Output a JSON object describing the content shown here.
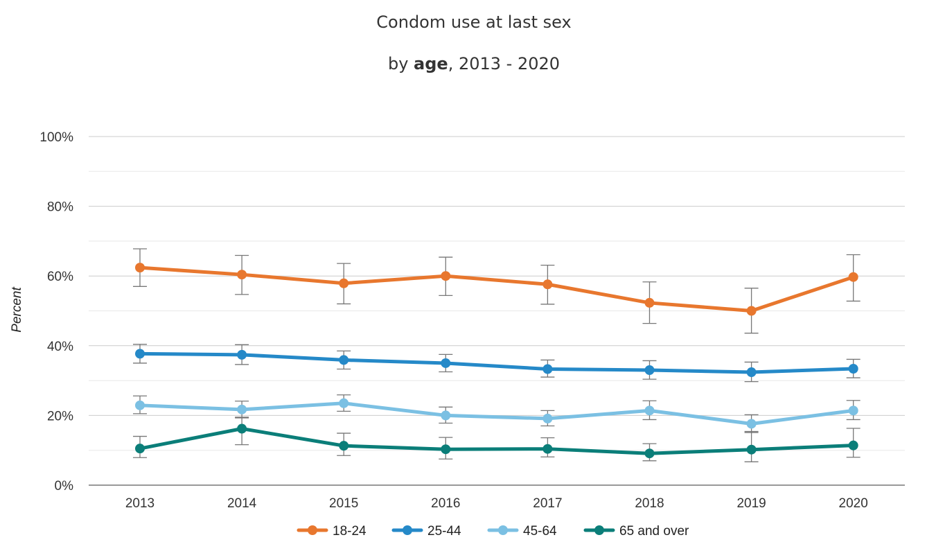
{
  "chart_data": {
    "type": "line",
    "title": "Condom use at last sex",
    "subtitle": {
      "prefix": "by ",
      "bold": "age",
      "suffix": ", 2013 - 2020"
    },
    "xlabel": "",
    "ylabel": "Percent",
    "x": [
      "2013",
      "2014",
      "2015",
      "2016",
      "2017",
      "2018",
      "2019",
      "2020"
    ],
    "ylim": [
      0,
      100
    ],
    "yticks": [
      0,
      20,
      40,
      60,
      80,
      100
    ],
    "ytick_labels": [
      "0%",
      "20%",
      "40%",
      "60%",
      "80%",
      "100%"
    ],
    "grid": true,
    "legend_position": "bottom",
    "series": [
      {
        "name": "18-24",
        "color": "#E8772E",
        "values": [
          62.4,
          60.4,
          57.9,
          60.0,
          57.6,
          52.3,
          50.0,
          59.7
        ],
        "error_low": [
          57.0,
          54.7,
          52.0,
          54.4,
          51.9,
          46.4,
          43.6,
          52.8
        ],
        "error_high": [
          67.8,
          65.9,
          63.6,
          65.4,
          63.1,
          58.3,
          56.5,
          66.1
        ]
      },
      {
        "name": "25-44",
        "color": "#2589C8",
        "values": [
          37.7,
          37.4,
          35.9,
          35.0,
          33.3,
          33.0,
          32.4,
          33.4
        ],
        "error_low": [
          35.0,
          34.6,
          33.3,
          32.5,
          31.0,
          30.4,
          29.7,
          30.8
        ],
        "error_high": [
          40.4,
          40.3,
          38.5,
          37.5,
          35.9,
          35.7,
          35.3,
          36.1
        ]
      },
      {
        "name": "45-64",
        "color": "#7BC0E3",
        "values": [
          22.9,
          21.7,
          23.5,
          20.0,
          19.1,
          21.4,
          17.6,
          21.4
        ],
        "error_low": [
          20.5,
          19.3,
          21.2,
          17.8,
          17.0,
          18.8,
          15.1,
          18.8
        ],
        "error_high": [
          25.6,
          24.1,
          25.9,
          22.4,
          21.4,
          24.2,
          20.2,
          24.3
        ]
      },
      {
        "name": "65 and over",
        "color": "#0B7E79",
        "values": [
          10.5,
          16.2,
          11.3,
          10.3,
          10.4,
          9.1,
          10.2,
          11.4
        ],
        "error_low": [
          7.9,
          11.6,
          8.5,
          7.5,
          8.1,
          7.0,
          6.7,
          8.0
        ],
        "error_high": [
          14.0,
          19.5,
          14.9,
          13.7,
          13.6,
          11.9,
          15.4,
          16.3
        ]
      }
    ]
  }
}
